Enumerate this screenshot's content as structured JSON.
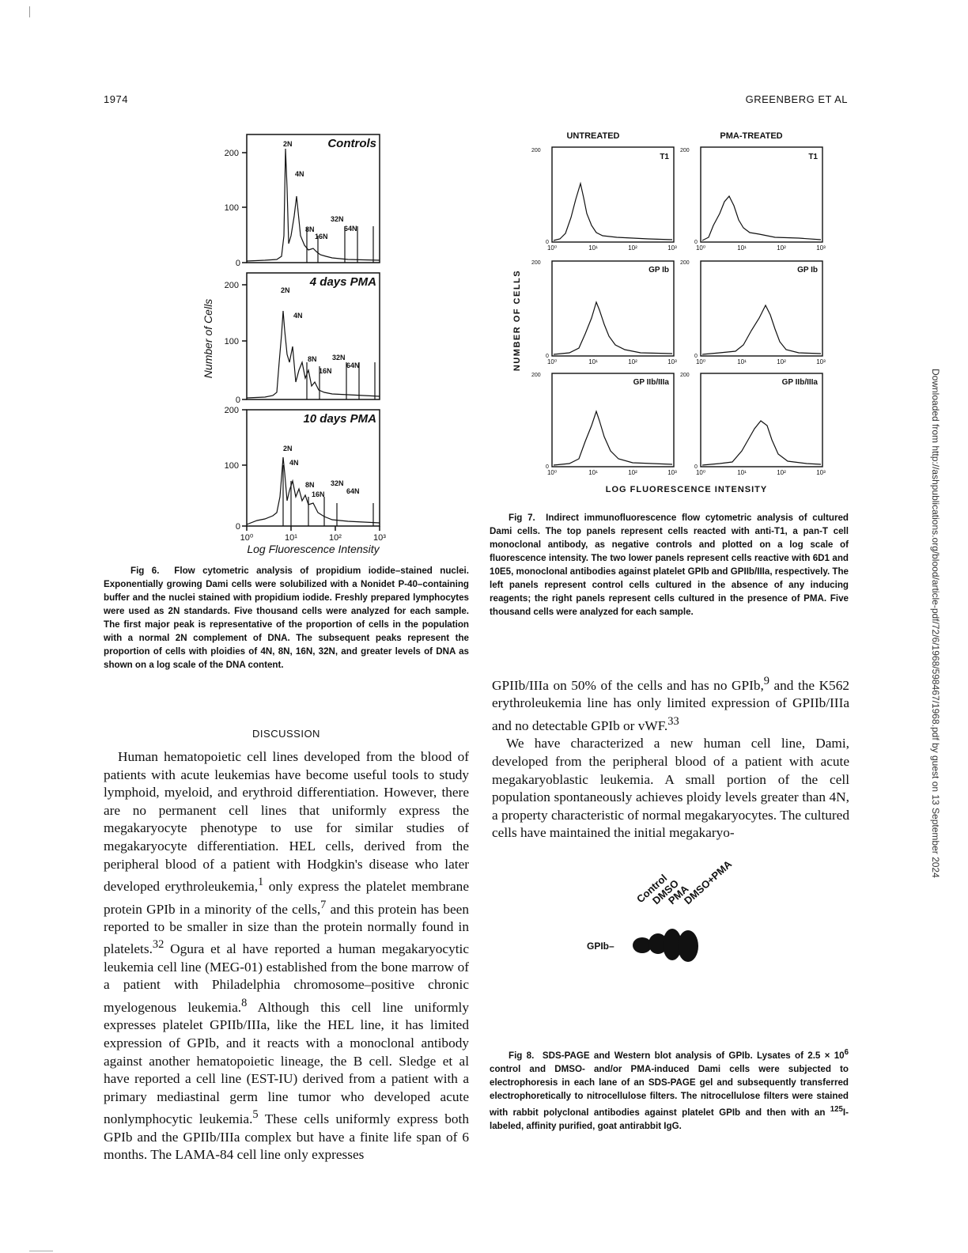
{
  "page": {
    "number": "1974",
    "running_head": "GREENBERG ET AL",
    "sidebar": "Downloaded from http://ashpublications.org/blood/article-pdf/72/6/1968/598467/1968.pdf by guest on 13 September 2024"
  },
  "fig6": {
    "ylabel": "Number of Cells",
    "xlabel": "Log Fluorescence Intensity",
    "panels": [
      {
        "label": "Controls",
        "yticks": [
          "200",
          "100",
          "0"
        ],
        "peaks": [
          "2N",
          "4N",
          "8N",
          "16N",
          "32N",
          "64N"
        ]
      },
      {
        "label": "4 days PMA",
        "yticks": [
          "200",
          "100",
          "0"
        ],
        "peaks": [
          "2N",
          "4N",
          "8N",
          "16N",
          "32N",
          "64N"
        ]
      },
      {
        "label": "10 days PMA",
        "yticks": [
          "200",
          "100",
          "0"
        ],
        "peaks": [
          "2N",
          "4N",
          "8N",
          "16N",
          "32N",
          "64N"
        ]
      }
    ],
    "xticks": [
      "10⁰",
      "10¹",
      "10²",
      "10³"
    ],
    "caption_label": "Fig 6.",
    "caption": "Flow cytometric analysis of propidium iodide–stained nuclei. Exponentially growing Dami cells were solubilized with a Nonidet P-40–containing buffer and the nuclei stained with propidium iodide. Freshly prepared lymphocytes were used as 2N standards. Five thousand cells were analyzed for each sample. The first major peak is representative of the proportion of cells in the population with a normal 2N complement of DNA. The subsequent peaks represent the proportion of cells with ploidies of 4N, 8N, 16N, 32N, and greater levels of DNA as shown on a log scale of the DNA content."
  },
  "fig7": {
    "col_titles": [
      "UNTREATED",
      "PMA-TREATED"
    ],
    "ylabel": "NUMBER OF CELLS",
    "xlabel": "LOG FLUORESCENCE INTENSITY",
    "row_labels": [
      "T1",
      "GP Ib",
      "GP IIb/IIIa"
    ],
    "ytick_top": "200",
    "ytick_bottom": "0",
    "xticks": [
      "10⁰",
      "10¹",
      "10²",
      "10³"
    ],
    "caption_label": "Fig 7.",
    "caption": "Indirect immunofluorescence flow cytometric analysis of cultured Dami cells. The top panels represent cells reacted with anti-T1, a pan-T cell monoclonal antibody, as negative controls and plotted on a log scale of fluorescence intensity. The two lower panels represent cells reactive with 6D1 and 10E5, monoclonal antibodies against platelet GPIb and GPIIb/IIIa, respectively. The left panels represent control cells cultured in the absence of any inducing reagents; the right panels represent cells cultured in the presence of PMA. Five thousand cells were analyzed for each sample."
  },
  "fig8": {
    "lanes": [
      "Control",
      "DMSO",
      "PMA",
      "DMSO+PMA"
    ],
    "band_label": "GPIb–",
    "caption_label": "Fig 8.",
    "caption_html": "SDS-PAGE and Western blot analysis of GPIb. Lysates of 2.5 × 10<sup>6</sup> control and DMSO- and/or PMA-induced Dami cells were subjected to electrophoresis in each lane of an SDS-PAGE gel and subsequently transferred electrophoretically to nitrocellulose filters. The nitrocellulose filters were stained with rabbit polyclonal antibodies against platelet GPIb and then with an <sup>125</sup>I-labeled, affinity purified, goat antirabbit IgG."
  },
  "discussion": {
    "heading": "DISCUSSION",
    "paragraph1_html": "Human hematopoietic cell lines developed from the blood of patients with acute leukemias have become useful tools to study lymphoid, myeloid, and erythroid differentiation. However, there are no permanent cell lines that uniformly express the megakaryocyte phenotype to use for similar studies of megakaryocyte differentiation. HEL cells, derived from the peripheral blood of a patient with Hodgkin's disease who later developed erythroleukemia,<sup>1</sup> only express the platelet membrane protein GPIb in a minority of the cells,<sup>7</sup> and this protein has been reported to be smaller in size than the protein normally found in platelets.<sup>32</sup> Ogura et al have reported a human megakaryocytic leukemia cell line (MEG-01) established from the bone marrow of a patient with Philadelphia chromosome–positive chronic myelogenous leukemia.<sup>8</sup> Although this cell line uniformly expresses platelet GPIIb/IIIa, like the HEL line, it has limited expression of GPIb, and it reacts with a monoclonal antibody against another hematopoietic lineage, the B cell. Sledge et al have reported a cell line (EST-IU) derived from a patient with a primary mediastinal germ line tumor who developed acute nonlymphocytic leukemia.<sup>5</sup> These cells uniformly express both GPIb and the GPIIb/IIIa complex but have a finite life span of 6 months. The LAMA-84 cell line only expresses",
    "continuation_html": "GPIIb/IIIa on 50% of the cells and has no GPIb,<sup>9</sup> and the K562 erythroleukemia line has only limited expression of GPIIb/IIIa and no detectable GPIb or vWF.<sup>33</sup>",
    "paragraph2_html": "We have characterized a new human cell line, Dami, developed from the peripheral blood of a patient with acute megakaryoblastic leukemia. A small portion of the cell population spontaneously achieves ploidy levels greater than 4N, a property characteristic of normal megakaryocytes. The cultured cells have maintained the initial megakaryo-"
  }
}
